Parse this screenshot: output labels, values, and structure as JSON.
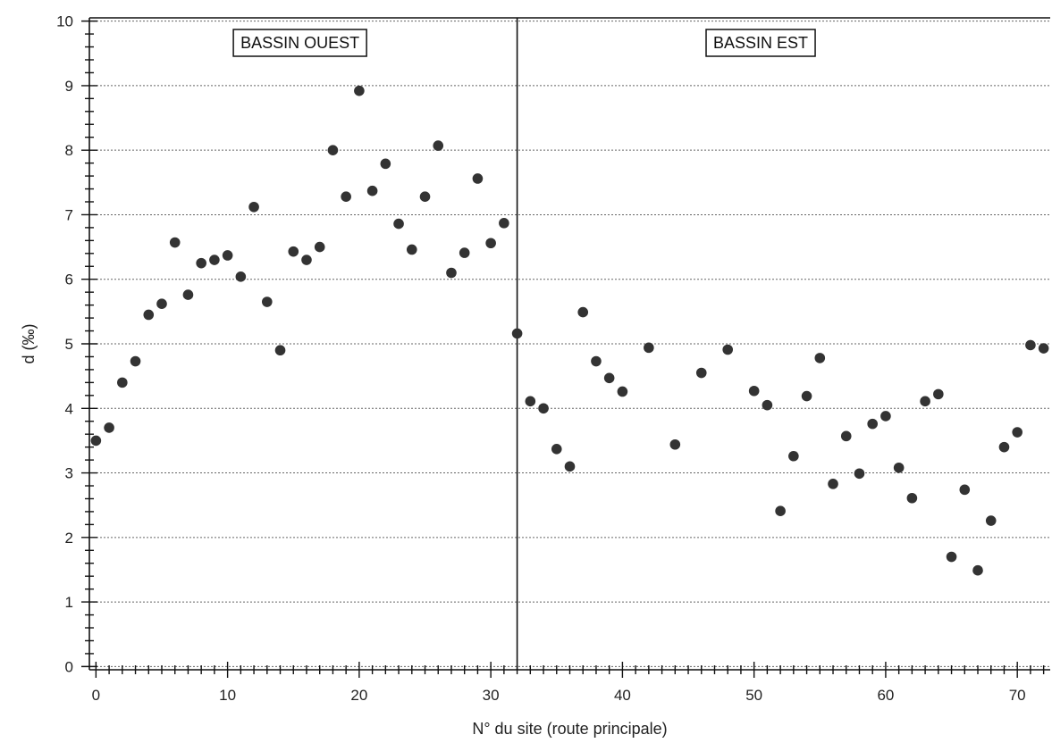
{
  "chart_data": {
    "type": "scatter",
    "title": "",
    "xlabel": "N° du site (route principale)",
    "ylabel": "d (‰)",
    "xlim": [
      -0.5,
      72.5
    ],
    "ylim": [
      -0.05,
      10.05
    ],
    "xticks": [
      0,
      10,
      20,
      30,
      40,
      50,
      60,
      70
    ],
    "yticks": [
      0,
      1,
      2,
      3,
      4,
      5,
      6,
      7,
      8,
      9,
      10
    ],
    "grid": "horizontal dotted",
    "divider_x": 32,
    "regions": [
      {
        "label": "BASSIN OUEST",
        "x_center": 15.5
      },
      {
        "label": "BASSIN EST",
        "x_center": 50.5
      }
    ],
    "series": [
      {
        "point_color": "#333333",
        "points": [
          [
            0,
            3.5
          ],
          [
            1,
            3.7
          ],
          [
            2,
            4.4
          ],
          [
            3,
            4.73
          ],
          [
            4,
            5.45
          ],
          [
            5,
            5.62
          ],
          [
            6,
            6.57
          ],
          [
            7,
            5.76
          ],
          [
            8,
            6.25
          ],
          [
            9,
            6.3
          ],
          [
            10,
            6.37
          ],
          [
            11,
            6.04
          ],
          [
            12,
            7.12
          ],
          [
            13,
            5.65
          ],
          [
            14,
            4.9
          ],
          [
            15,
            6.43
          ],
          [
            16,
            6.3
          ],
          [
            17,
            6.5
          ],
          [
            18,
            8.0
          ],
          [
            19,
            7.28
          ],
          [
            20,
            8.92
          ],
          [
            21,
            7.37
          ],
          [
            22,
            7.79
          ],
          [
            23,
            6.86
          ],
          [
            24,
            6.46
          ],
          [
            25,
            7.28
          ],
          [
            26,
            8.07
          ],
          [
            27,
            6.1
          ],
          [
            28,
            6.41
          ],
          [
            29,
            7.56
          ],
          [
            30,
            6.56
          ],
          [
            31,
            6.87
          ],
          [
            32,
            5.16
          ],
          [
            33,
            4.11
          ],
          [
            34,
            4.0
          ],
          [
            35,
            3.37
          ],
          [
            36,
            3.1
          ],
          [
            37,
            5.49
          ],
          [
            38,
            4.73
          ],
          [
            39,
            4.47
          ],
          [
            40,
            4.26
          ],
          [
            42,
            4.94
          ],
          [
            44,
            3.44
          ],
          [
            46,
            4.55
          ],
          [
            48,
            4.91
          ],
          [
            50,
            4.27
          ],
          [
            51,
            4.05
          ],
          [
            52,
            2.41
          ],
          [
            53,
            3.26
          ],
          [
            54,
            4.19
          ],
          [
            55,
            4.78
          ],
          [
            56,
            2.83
          ],
          [
            57,
            3.57
          ],
          [
            58,
            2.99
          ],
          [
            59,
            3.76
          ],
          [
            60,
            3.88
          ],
          [
            61,
            3.08
          ],
          [
            62,
            2.61
          ],
          [
            63,
            4.11
          ],
          [
            64,
            4.22
          ],
          [
            65,
            1.7
          ],
          [
            66,
            2.74
          ],
          [
            67,
            1.49
          ],
          [
            68,
            2.26
          ],
          [
            69,
            3.4
          ],
          [
            70,
            3.63
          ],
          [
            71,
            4.98
          ],
          [
            72,
            4.93
          ]
        ]
      }
    ]
  }
}
